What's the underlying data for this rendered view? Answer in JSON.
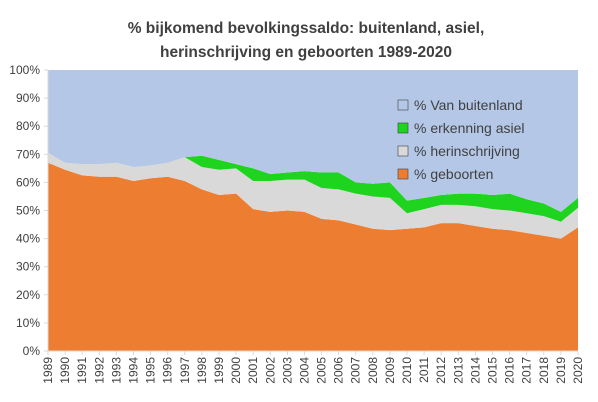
{
  "chart_data": {
    "type": "area",
    "stacked": true,
    "title_lines": [
      "% bijkomend bevolkingssaldo: buitenland, asiel,",
      "herinschrijving en geboorten 1989-2020"
    ],
    "xlabel": "",
    "ylabel": "",
    "ylim": [
      0,
      100
    ],
    "y_tick_format": "percent",
    "y_ticks": [
      0,
      10,
      20,
      30,
      40,
      50,
      60,
      70,
      80,
      90,
      100
    ],
    "grid": false,
    "legend_position": "top-right",
    "x": [
      "1989",
      "1990",
      "1991",
      "1992",
      "1993",
      "1994",
      "1995",
      "1996",
      "1997",
      "1998",
      "1999",
      "2000",
      "2001",
      "2002",
      "2003",
      "2004",
      "2005",
      "2006",
      "2007",
      "2008",
      "2009",
      "2010",
      "2011",
      "2012",
      "2013",
      "2014",
      "2015",
      "2016",
      "2017",
      "2018",
      "2019",
      "2020"
    ],
    "series": [
      {
        "name": "% geboorten",
        "color": "#ED7D31",
        "values": [
          67,
          64.5,
          62.5,
          62,
          62,
          60.5,
          61.5,
          62,
          60.5,
          57.5,
          55.5,
          56,
          50.5,
          49.5,
          50,
          49.5,
          47,
          46.5,
          45,
          43.5,
          43,
          43.5,
          44,
          45.5,
          45.5,
          44.5,
          43.5,
          43,
          42,
          41,
          40,
          44
        ]
      },
      {
        "name": "% herinschrijving",
        "color": "#D9D9D9",
        "values": [
          3.5,
          2.5,
          4,
          4.5,
          5,
          5,
          4.5,
          5,
          8.5,
          8,
          9,
          9,
          10,
          11,
          11,
          11.5,
          11,
          11,
          11,
          11.5,
          11.5,
          5.5,
          6.5,
          6.5,
          6.5,
          7,
          7,
          7,
          7,
          7,
          6,
          7
        ]
      },
      {
        "name": "% erkenning asiel",
        "color": "#1FD41F",
        "values": [
          0,
          0,
          0,
          0,
          0,
          0,
          0,
          0,
          0,
          4,
          3.5,
          1.5,
          4.5,
          2.5,
          2.5,
          3,
          5.5,
          6,
          4,
          4.5,
          5.5,
          4.5,
          4,
          3.5,
          4,
          4.5,
          5,
          6,
          5,
          4.5,
          3.5,
          3.5
        ]
      },
      {
        "name": "% Van buitenland",
        "color": "#B4C7E7",
        "values": [
          29.5,
          33,
          33.5,
          33.5,
          33,
          34.5,
          34,
          33,
          31,
          30.5,
          32,
          33.5,
          35,
          37,
          36.5,
          36,
          36.5,
          36.5,
          40,
          40.5,
          40,
          46.5,
          45.5,
          44.5,
          44,
          44,
          44.5,
          44,
          46,
          47.5,
          50.5,
          45.5
        ]
      }
    ]
  }
}
